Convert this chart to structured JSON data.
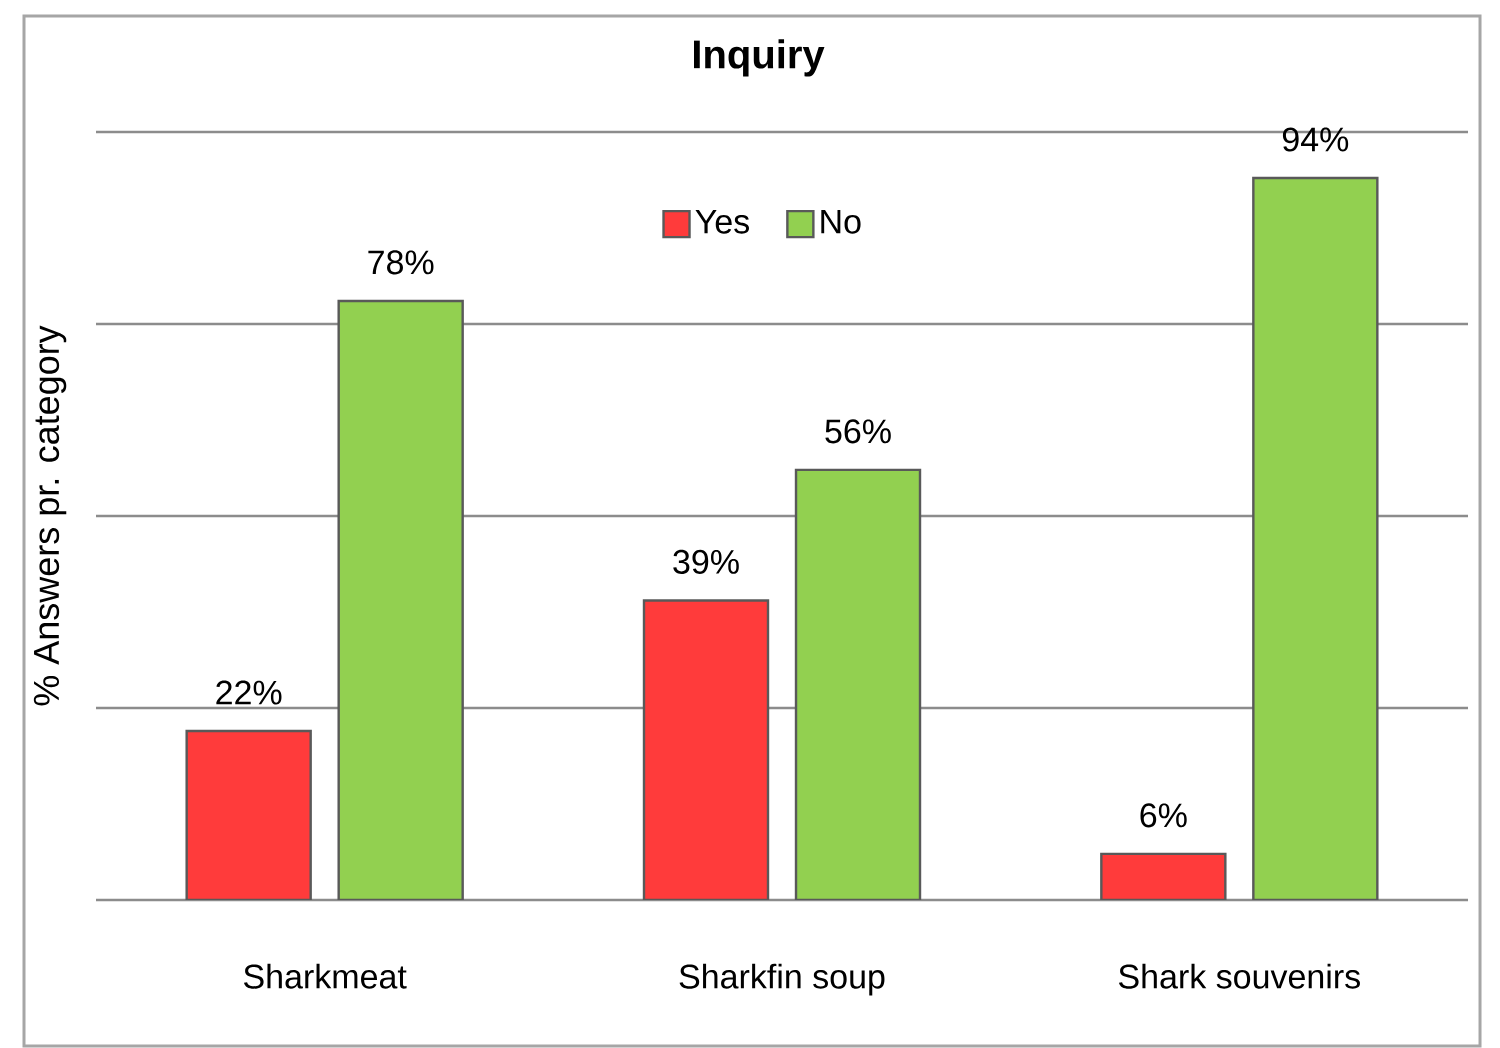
{
  "chart_data": {
    "type": "bar",
    "title": "Inquiry",
    "ylabel": "% Answers pr. category",
    "categories": [
      "Sharkmeat",
      "Sharkfin soup",
      "Shark souvenirs"
    ],
    "series": [
      {
        "name": "Yes",
        "color": "#ff3b3b",
        "values": [
          22,
          39,
          6
        ],
        "value_labels": [
          "22%",
          "39%",
          "6%"
        ]
      },
      {
        "name": "No",
        "color": "#92d050",
        "values": [
          78,
          56,
          94
        ],
        "value_labels": [
          "78%",
          "56%",
          "94%"
        ]
      }
    ],
    "ylim": [
      0,
      100
    ],
    "yticks": [
      {
        "value": 0,
        "label": null
      },
      {
        "value": 25,
        "label": null
      },
      {
        "value": 50,
        "label": null
      },
      {
        "value": 75,
        "label": null
      },
      {
        "value": 100,
        "label": null
      }
    ],
    "tick_labels": "x",
    "grid": "y",
    "legend": "top"
  }
}
